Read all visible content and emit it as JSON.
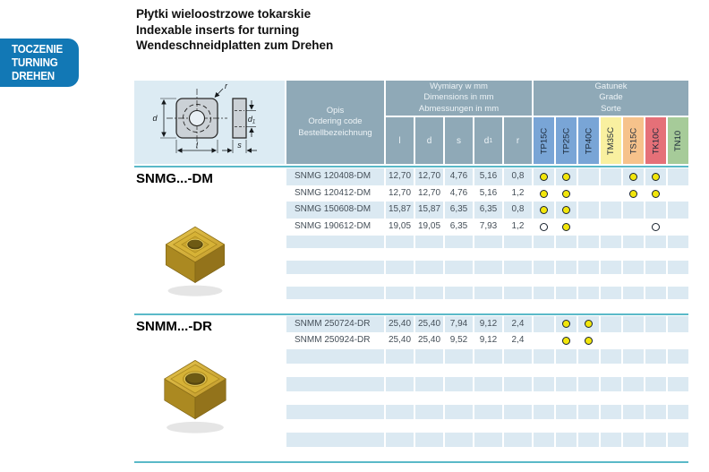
{
  "page": {
    "badge": {
      "lines": [
        "TOCZENIE",
        "TURNING",
        "DREHEN"
      ],
      "bg_color": "#1278b5"
    },
    "titles": [
      "Płytki wieloostrzowe tokarskie",
      "Indexable inserts for turning",
      "Wendeschneidplatten zum Drehen"
    ]
  },
  "colors": {
    "accent_teal": "#5ab9c8",
    "header_bg": "#8fa9b7",
    "row_stripe": "#dbe9f2",
    "dot_yellow": "#f2e60b",
    "insert_gold": "#c9a22c"
  },
  "drawing": {
    "labels": {
      "d": "d",
      "l": "l",
      "r": "r",
      "s": "s",
      "d1_base": "d",
      "d1_sub": "1"
    }
  },
  "table": {
    "header": {
      "opis": [
        "Opis",
        "Ordering code",
        "Bestellbezeichnung"
      ],
      "dims_group": [
        "Wymiary w mm",
        "Dimensions in mm",
        "Abmessungen in mm"
      ],
      "dim_cols": [
        {
          "base": "l",
          "sub": ""
        },
        {
          "base": "d",
          "sub": ""
        },
        {
          "base": "s",
          "sub": ""
        },
        {
          "base": "d",
          "sub": "1"
        },
        {
          "base": "r",
          "sub": ""
        }
      ],
      "grade_group": [
        "Gatunek",
        "Grade",
        "Sorte"
      ],
      "grades": [
        {
          "label": "TP15C",
          "color": "#79a5d6"
        },
        {
          "label": "TP25C",
          "color": "#79a5d6"
        },
        {
          "label": "TP40C",
          "color": "#79a5d6"
        },
        {
          "label": "TM35C",
          "color": "#f9f0a0"
        },
        {
          "label": "TS15C",
          "color": "#f6c28b"
        },
        {
          "label": "TK10C",
          "color": "#e57078"
        },
        {
          "label": "TN10",
          "color": "#a6cb99"
        }
      ]
    },
    "sections": [
      {
        "title": "SNMG...-DM",
        "rows": [
          {
            "code": "SNMG 120408-DM",
            "dims": [
              "12,70",
              "12,70",
              "4,76",
              "5,16",
              "0,8"
            ],
            "dots": [
              "filled",
              "filled",
              "",
              "",
              "filled",
              "filled",
              ""
            ]
          },
          {
            "code": "SNMG 120412-DM",
            "dims": [
              "12,70",
              "12,70",
              "4,76",
              "5,16",
              "1,2"
            ],
            "dots": [
              "filled",
              "filled",
              "",
              "",
              "filled",
              "filled",
              ""
            ]
          },
          {
            "code": "SNMG 150608-DM",
            "dims": [
              "15,87",
              "15,87",
              "6,35",
              "6,35",
              "0,8"
            ],
            "dots": [
              "filled",
              "filled",
              "",
              "",
              "",
              "",
              ""
            ]
          },
          {
            "code": "SNMG 190612-DM",
            "dims": [
              "19,05",
              "19,05",
              "6,35",
              "7,93",
              "1,2"
            ],
            "dots": [
              "open",
              "filled",
              "",
              "",
              "",
              "open",
              ""
            ]
          }
        ],
        "empty_rows": 6
      },
      {
        "title": "SNMM...-DR",
        "rows": [
          {
            "code": "SNMM 250724-DR",
            "dims": [
              "25,40",
              "25,40",
              "7,94",
              "9,12",
              "2,4"
            ],
            "dots": [
              "",
              "filled",
              "filled",
              "",
              "",
              "",
              ""
            ]
          },
          {
            "code": "SNMM 250924-DR",
            "dims": [
              "25,40",
              "25,40",
              "9,52",
              "9,12",
              "2,4"
            ],
            "dots": [
              "",
              "filled",
              "filled",
              "",
              "",
              "",
              ""
            ]
          }
        ],
        "empty_rows": 8
      }
    ]
  }
}
